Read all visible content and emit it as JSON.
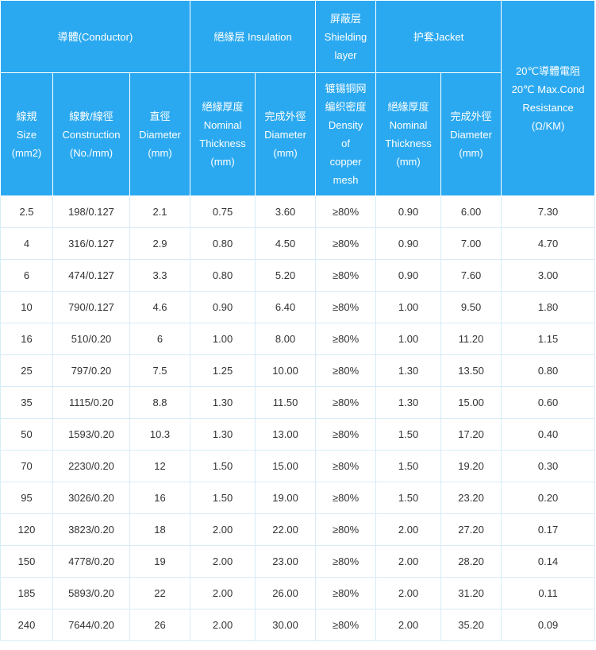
{
  "headers": {
    "conductor": "導體(Conductor)",
    "insulation": "絕緣层 Insulation",
    "shielding": [
      "屏蔽层",
      "Shielding",
      "layer"
    ],
    "jacket": "护套Jacket",
    "resistance": [
      "20℃導體電阻",
      "20℃ Max.Cond",
      "Resistance",
      "(Ω/KM)"
    ],
    "size": [
      "線規",
      "Size",
      "(mm2)"
    ],
    "construction": [
      "線數/線徑",
      "Construction",
      "(No./mm)"
    ],
    "diameter": [
      "直徑",
      "Diameter",
      "(mm)"
    ],
    "ins_thickness": [
      "絕緣厚度",
      "Nominal",
      "Thickness",
      "(mm)"
    ],
    "ins_od": [
      "完成外徑",
      "Diameter",
      "(mm)"
    ],
    "density": [
      "镀锡铜网",
      "编织密度",
      "Density",
      "of",
      "copper",
      "mesh"
    ],
    "jacket_thickness": [
      "絕緣厚度",
      "Nominal",
      "Thickness",
      "(mm)"
    ],
    "jacket_od": [
      "完成外徑",
      "Diameter",
      "(mm)"
    ]
  },
  "rows": [
    [
      "2.5",
      "198/0.127",
      "2.1",
      "0.75",
      "3.60",
      "≥80%",
      "0.90",
      "6.00",
      "7.30"
    ],
    [
      "4",
      "316/0.127",
      "2.9",
      "0.80",
      "4.50",
      "≥80%",
      "0.90",
      "7.00",
      "4.70"
    ],
    [
      "6",
      "474/0.127",
      "3.3",
      "0.80",
      "5.20",
      "≥80%",
      "0.90",
      "7.60",
      "3.00"
    ],
    [
      "10",
      "790/0.127",
      "4.6",
      "0.90",
      "6.40",
      "≥80%",
      "1.00",
      "9.50",
      "1.80"
    ],
    [
      "16",
      "510/0.20",
      "6",
      "1.00",
      "8.00",
      "≥80%",
      "1.00",
      "11.20",
      "1.15"
    ],
    [
      "25",
      "797/0.20",
      "7.5",
      "1.25",
      "10.00",
      "≥80%",
      "1.30",
      "13.50",
      "0.80"
    ],
    [
      "35",
      "1115/0.20",
      "8.8",
      "1.30",
      "11.50",
      "≥80%",
      "1.30",
      "15.00",
      "0.60"
    ],
    [
      "50",
      "1593/0.20",
      "10.3",
      "1.30",
      "13.00",
      "≥80%",
      "1.50",
      "17.20",
      "0.40"
    ],
    [
      "70",
      "2230/0.20",
      "12",
      "1.50",
      "15.00",
      "≥80%",
      "1.50",
      "19.20",
      "0.30"
    ],
    [
      "95",
      "3026/0.20",
      "16",
      "1.50",
      "19.00",
      "≥80%",
      "1.50",
      "23.20",
      "0.20"
    ],
    [
      "120",
      "3823/0.20",
      "18",
      "2.00",
      "22.00",
      "≥80%",
      "2.00",
      "27.20",
      "0.17"
    ],
    [
      "150",
      "4778/0.20",
      "19",
      "2.00",
      "23.00",
      "≥80%",
      "2.00",
      "28.20",
      "0.14"
    ],
    [
      "185",
      "5893/0.20",
      "22",
      "2.00",
      "26.00",
      "≥80%",
      "2.00",
      "31.20",
      "0.11"
    ],
    [
      "240",
      "7644/0.20",
      "26",
      "2.00",
      "30.00",
      "≥80%",
      "2.00",
      "35.20",
      "0.09"
    ]
  ]
}
